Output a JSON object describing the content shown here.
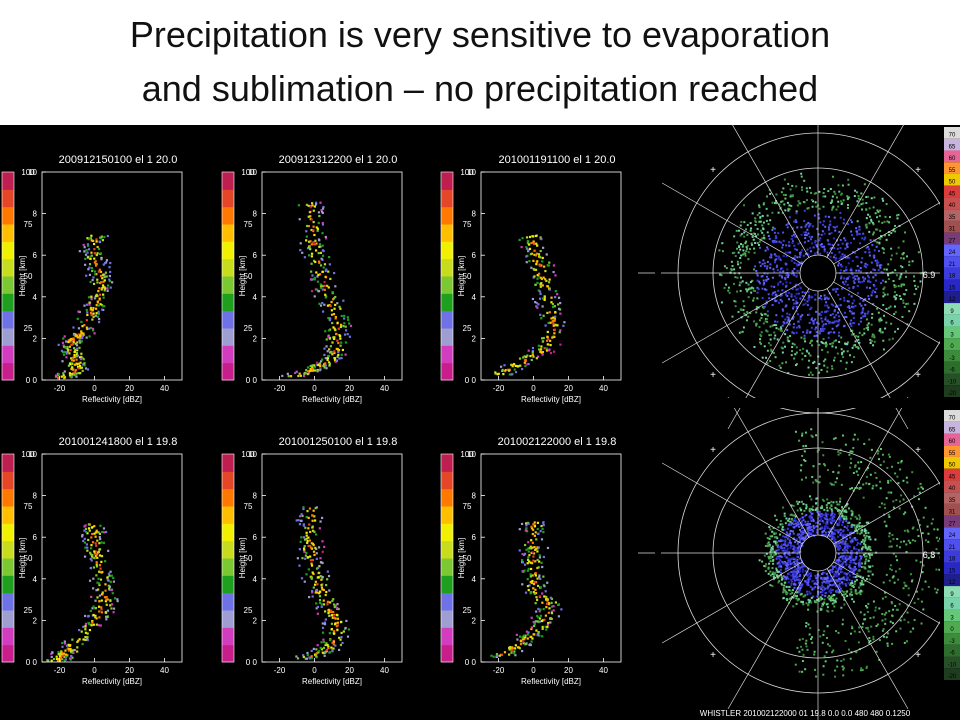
{
  "slide": {
    "title_line1": "Precipitation is very sensitive to evaporation",
    "title_line2": "and sublimation – no precipitation reached"
  },
  "colors": {
    "background": "#000000",
    "frequency_scale": [
      "#c81e8c",
      "#d23cbe",
      "#9e9ed2",
      "#6e72e6",
      "#1ea01e",
      "#7cc832",
      "#c8dc1e",
      "#f0f000",
      "#ffbe00",
      "#ff7800",
      "#e64628",
      "#be1e50"
    ],
    "radar_scale": [
      "#1e3c1e",
      "#285028",
      "#2d6e2d",
      "#3c8c3c",
      "#50aa50",
      "#64c878",
      "#78d2aa",
      "#8cdcb4",
      "#1e1e8c",
      "#2828c8",
      "#3c3cdc",
      "#5050f0",
      "#6464ff",
      "#783c78",
      "#a05050",
      "#b46464",
      "#c85050",
      "#dc3c3c",
      "#f0c800",
      "#ff9632",
      "#e66496",
      "#c8b4dc",
      "#dcdcdc"
    ]
  },
  "chart_data": [
    {
      "type": "heatmap",
      "title": "200912150100 el 1 20.0",
      "xlabel": "Reflectivity [dBZ]",
      "ylabel": "Height [km]",
      "xlim": [
        -30,
        50
      ],
      "ylim": [
        0,
        10
      ],
      "xticks": [
        -20,
        0,
        20,
        40
      ],
      "yticks": [
        0,
        2,
        4,
        6,
        8,
        10
      ],
      "colorbar_ticks": [
        0,
        25,
        50,
        75,
        100
      ],
      "profile": [
        {
          "h": 0.1,
          "m": -22
        },
        {
          "h": 0.5,
          "m": -10
        },
        {
          "h": 1.0,
          "m": -12
        },
        {
          "h": 1.5,
          "m": -14
        },
        {
          "h": 2.0,
          "m": -13
        },
        {
          "h": 2.3,
          "m": -8
        },
        {
          "h": 3.3,
          "m": -2
        },
        {
          "h": 4.0,
          "m": 2
        },
        {
          "h": 4.8,
          "m": 3
        },
        {
          "h": 5.5,
          "m": 1
        },
        {
          "h": 6.2,
          "m": -1
        },
        {
          "h": 7.0,
          "m": 0
        }
      ]
    },
    {
      "type": "heatmap",
      "title": "200912312200 el 1 20.0",
      "xlabel": "Reflectivity [dBZ]",
      "ylabel": "Height [km]",
      "xlim": [
        -30,
        50
      ],
      "ylim": [
        0,
        10
      ],
      "xticks": [
        -20,
        0,
        20,
        40
      ],
      "yticks": [
        0,
        2,
        4,
        6,
        8,
        10
      ],
      "colorbar_ticks": [
        0,
        25,
        50,
        75,
        100
      ],
      "profile": [
        {
          "h": 0.2,
          "m": -14
        },
        {
          "h": 0.6,
          "m": 0
        },
        {
          "h": 1.0,
          "m": 8
        },
        {
          "h": 1.6,
          "m": 12
        },
        {
          "h": 2.5,
          "m": 13
        },
        {
          "h": 3.5,
          "m": 10
        },
        {
          "h": 4.5,
          "m": 6
        },
        {
          "h": 5.5,
          "m": 2
        },
        {
          "h": 6.5,
          "m": -1
        },
        {
          "h": 7.5,
          "m": -2
        },
        {
          "h": 8.6,
          "m": -3
        }
      ]
    },
    {
      "type": "heatmap",
      "title": "201001191100 el 1 20.0",
      "xlabel": "Reflectivity [dBZ]",
      "ylabel": "Height [km]",
      "xlim": [
        -30,
        50
      ],
      "ylim": [
        0,
        10
      ],
      "xticks": [
        -20,
        0,
        20,
        40
      ],
      "yticks": [
        0,
        2,
        4,
        6,
        8,
        10
      ],
      "colorbar_ticks": [
        0,
        25,
        50,
        75,
        100
      ],
      "profile": [
        {
          "h": 0.3,
          "m": -20
        },
        {
          "h": 0.8,
          "m": -10
        },
        {
          "h": 1.5,
          "m": 5
        },
        {
          "h": 2.5,
          "m": 11
        },
        {
          "h": 3.5,
          "m": 9
        },
        {
          "h": 4.5,
          "m": 6
        },
        {
          "h": 5.5,
          "m": 3
        },
        {
          "h": 6.3,
          "m": 0
        },
        {
          "h": 7.0,
          "m": -2
        }
      ]
    },
    {
      "type": "heatmap",
      "title": "201001241800 el 1 19.8",
      "xlabel": "Reflectivity [dBZ]",
      "ylabel": "Height [km]",
      "xlim": [
        -30,
        50
      ],
      "ylim": [
        0,
        10
      ],
      "xticks": [
        -20,
        0,
        20,
        40
      ],
      "yticks": [
        0,
        2,
        4,
        6,
        8,
        10
      ],
      "colorbar_ticks": [
        0,
        25,
        50,
        75,
        100
      ],
      "profile": [
        {
          "h": 0.1,
          "m": -22
        },
        {
          "h": 0.4,
          "m": -18
        },
        {
          "h": 0.7,
          "m": -15
        },
        {
          "h": 1.8,
          "m": -2
        },
        {
          "h": 2.5,
          "m": 3
        },
        {
          "h": 3.3,
          "m": 6
        },
        {
          "h": 4.2,
          "m": 4
        },
        {
          "h": 5.2,
          "m": 1
        },
        {
          "h": 6.0,
          "m": -1
        },
        {
          "h": 6.7,
          "m": -1
        }
      ]
    },
    {
      "type": "heatmap",
      "title": "201001250100 el 1 19.8",
      "xlabel": "Reflectivity [dBZ]",
      "ylabel": "Height [km]",
      "xlim": [
        -30,
        50
      ],
      "ylim": [
        0,
        10
      ],
      "xticks": [
        -20,
        0,
        20,
        40
      ],
      "yticks": [
        0,
        2,
        4,
        6,
        8,
        10
      ],
      "colorbar_ticks": [
        0,
        25,
        50,
        75,
        100
      ],
      "profile": [
        {
          "h": 0.2,
          "m": -8
        },
        {
          "h": 0.6,
          "m": 6
        },
        {
          "h": 1.2,
          "m": 12
        },
        {
          "h": 2.0,
          "m": 12
        },
        {
          "h": 2.8,
          "m": 7
        },
        {
          "h": 3.6,
          "m": 2
        },
        {
          "h": 4.5,
          "m": -1
        },
        {
          "h": 5.5,
          "m": -3
        },
        {
          "h": 6.5,
          "m": -3
        },
        {
          "h": 7.5,
          "m": -3
        }
      ]
    },
    {
      "type": "heatmap",
      "title": "201002122000 el 1 19.8",
      "xlabel": "Reflectivity [dBZ]",
      "ylabel": "Height [km]",
      "xlim": [
        -30,
        50
      ],
      "ylim": [
        0,
        10
      ],
      "xticks": [
        -20,
        0,
        20,
        40
      ],
      "yticks": [
        0,
        2,
        4,
        6,
        8,
        10
      ],
      "colorbar_ticks": [
        0,
        25,
        50,
        75,
        100
      ],
      "profile": [
        {
          "h": 0.3,
          "m": -20
        },
        {
          "h": 0.8,
          "m": -10
        },
        {
          "h": 1.3,
          "m": -3
        },
        {
          "h": 2.0,
          "m": 6
        },
        {
          "h": 2.8,
          "m": 8
        },
        {
          "h": 3.5,
          "m": 0
        },
        {
          "h": 4.3,
          "m": 0
        },
        {
          "h": 5.2,
          "m": -1
        },
        {
          "h": 6.2,
          "m": -1
        },
        {
          "h": 6.8,
          "m": -1
        }
      ]
    }
  ],
  "radar": {
    "scale_labels": [
      "70",
      "65",
      "60",
      "55",
      "50",
      "45",
      "40",
      "35",
      "31",
      "27",
      "24",
      "21",
      "18",
      "15",
      "12",
      "9",
      "6",
      "3",
      "0",
      "-3",
      "-6",
      "-10",
      "-20"
    ],
    "top_range_label": "6.9",
    "bottom_range_label": "6.8",
    "footer": "WHISTLER 201002122000   01  19.8   0.0   0.0 480 480  0.1250"
  }
}
